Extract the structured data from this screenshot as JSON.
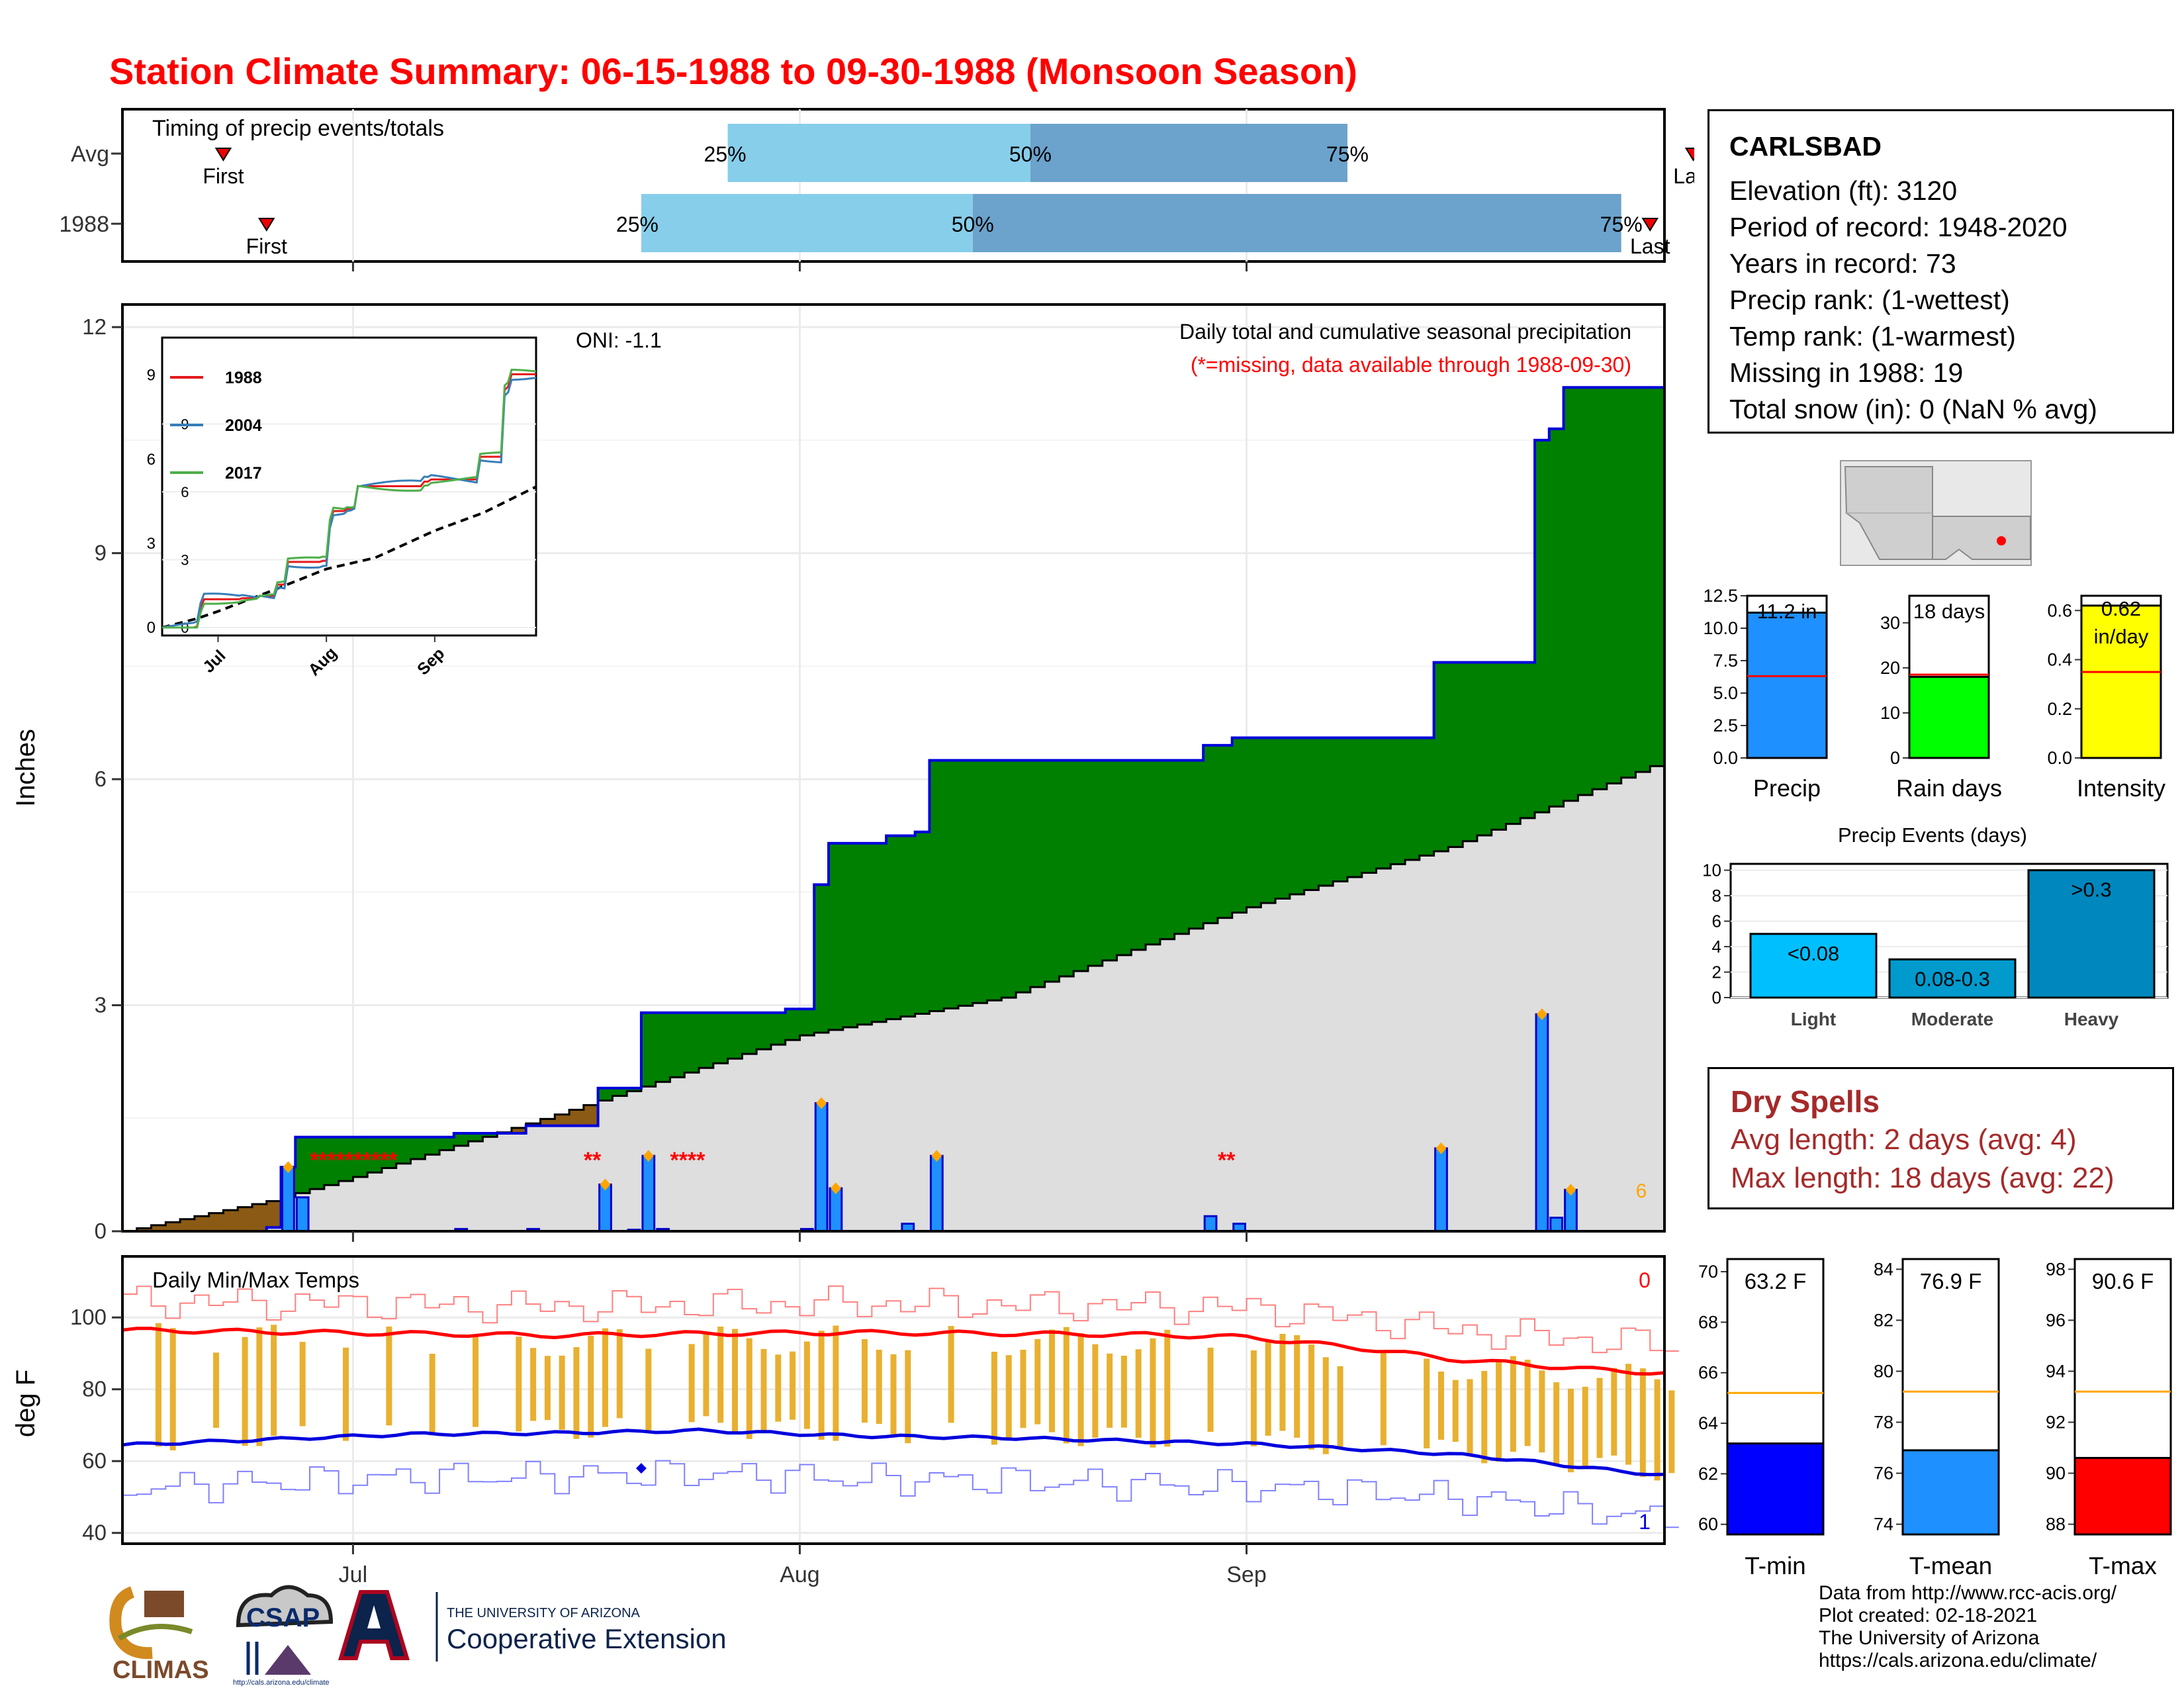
{
  "title": "Station Climate Summary: 06-15-1988 to 09-30-1988 (Monsoon Season)",
  "timing": {
    "panel_label": "Timing of precip events/totals",
    "rows": [
      {
        "label": "Avg",
        "first": "First",
        "last": "Last",
        "p25": "25%",
        "p50": "50%",
        "p75": "75%",
        "first_day": 7,
        "q25": 42,
        "q50": 63,
        "q75": 85,
        "last_day": 109
      },
      {
        "label": "1988",
        "first": "First",
        "last": "Last",
        "p25": "25%",
        "p50": "50%",
        "p75": "75%",
        "first_day": 10,
        "q25": 36,
        "q50": 59,
        "q75": 104,
        "last_day": 106
      }
    ]
  },
  "main_panel": {
    "ylabel": "Inches",
    "caption": "Daily total and cumulative seasonal precipitation",
    "missing_note": "(*=missing, data available through 1988-09-30)",
    "oni": "ONI: -1.1",
    "corner_count": "6",
    "missing_marks": [
      "**********",
      "**",
      "****",
      "**"
    ]
  },
  "inset": {
    "legend": [
      "1988",
      "2004",
      "2017"
    ],
    "yticks": [
      "0",
      "3",
      "6",
      "9"
    ],
    "xticks": [
      "Jul",
      "Aug",
      "Sep"
    ]
  },
  "temp_panel": {
    "ylabel": "deg F",
    "label": "Daily Min/Max Temps",
    "count_high": "0",
    "count_low": "1",
    "yticks": [
      "40",
      "60",
      "80",
      "100"
    ]
  },
  "x_axis": {
    "ticks": [
      "Jul",
      "Aug",
      "Sep"
    ]
  },
  "station": {
    "name": "CARLSBAD",
    "lines": [
      "Elevation (ft): 3120",
      "Period of record: 1948-2020",
      "Years in record: 73",
      "Precip rank:  (1-wettest)",
      "Temp rank:  (1-warmest)",
      "Missing in 1988: 19",
      "Total snow (in): 0 (NaN % avg)"
    ]
  },
  "mini_bars": [
    {
      "label": "Precip",
      "value_text": "11.2 in",
      "value": 11.2,
      "avg": 6.3,
      "ymax": 12.5,
      "ticks": [
        "0.0",
        "2.5",
        "5.0",
        "7.5",
        "10.0",
        "12.5"
      ],
      "color": "#1e90ff"
    },
    {
      "label": "Rain days",
      "value_text": "18 days",
      "value": 18,
      "avg": 18.5,
      "ymax": 36,
      "ticks": [
        "0",
        "10",
        "20",
        "30"
      ],
      "color": "#00ff00"
    },
    {
      "label": "Intensity",
      "value_text": "0.62 in/day",
      "value": 0.62,
      "avg": 0.35,
      "ymax": 0.66,
      "ticks": [
        "0.0",
        "0.2",
        "0.4",
        "0.6"
      ],
      "color": "#ffff00"
    }
  ],
  "precip_events": {
    "title": "Precip Events (days)",
    "categories": [
      "Light",
      "Moderate",
      "Heavy"
    ],
    "bar_labels": [
      "<0.08",
      "0.08-0.3",
      ">0.3"
    ],
    "values": [
      5,
      3,
      10
    ],
    "yticks": [
      "0",
      "2",
      "4",
      "6",
      "8",
      "10"
    ],
    "colors": [
      "#00bfff",
      "#009acd",
      "#0087bd"
    ]
  },
  "dry_spells": {
    "title": "Dry Spells",
    "avg_length": "Avg length: 2 days (avg: 4)",
    "max_length": "Max length: 18 days (avg: 22)"
  },
  "temp_bars": [
    {
      "label": "T-min",
      "value_text": "63.2 F",
      "value": 63.2,
      "avg": 65.2,
      "ymin": 59.6,
      "ymax": 70.5,
      "ticks": [
        "60",
        "62",
        "64",
        "66",
        "68",
        "70"
      ],
      "color": "#0000ff"
    },
    {
      "label": "T-mean",
      "value_text": "76.9 F",
      "value": 76.9,
      "avg": 79.2,
      "ymin": 73.6,
      "ymax": 84.4,
      "ticks": [
        "74",
        "76",
        "78",
        "80",
        "82",
        "84"
      ],
      "color": "#1e90ff"
    },
    {
      "label": "T-max",
      "value_text": "90.6 F",
      "value": 90.6,
      "avg": 93.2,
      "ymin": 87.6,
      "ymax": 98.4,
      "ticks": [
        "88",
        "90",
        "92",
        "94",
        "96",
        "98"
      ],
      "color": "#ff0000"
    }
  ],
  "logos": {
    "climas": "CLIMAS",
    "csap": "CSAP",
    "csap_url": "http://cals.arizona.edu/climate",
    "ua_small": "THE UNIVERSITY OF ARIZONA",
    "ua_big": "Cooperative Extension"
  },
  "credits": [
    "Data from http://www.rcc-acis.org/",
    "Plot created: 02-18-2021",
    "The University of Arizona",
    "https://cals.arizona.edu/climate/"
  ],
  "chart_data": [
    {
      "type": "area",
      "title": "Daily total and cumulative seasonal precipitation",
      "ylabel": "Inches",
      "ylim": [
        0,
        12.3
      ],
      "xlim": [
        "1988-06-15",
        "1988-09-30"
      ],
      "cumulative_1988": [
        [
          "06-15",
          0
        ],
        [
          "06-25",
          0.05
        ],
        [
          "06-26",
          0.85
        ],
        [
          "06-27",
          1.25
        ],
        [
          "07-07",
          1.25
        ],
        [
          "07-08",
          1.3
        ],
        [
          "07-12",
          1.3
        ],
        [
          "07-13",
          1.4
        ],
        [
          "07-17",
          1.4
        ],
        [
          "07-18",
          1.9
        ],
        [
          "07-20",
          1.9
        ],
        [
          "07-21",
          2.9
        ],
        [
          "07-31",
          2.95
        ],
        [
          "08-01",
          2.95
        ],
        [
          "08-02",
          4.6
        ],
        [
          "08-03",
          5.15
        ],
        [
          "08-07",
          5.25
        ],
        [
          "08-09",
          5.3
        ],
        [
          "08-10",
          6.25
        ],
        [
          "08-29",
          6.45
        ],
        [
          "08-31",
          6.55
        ],
        [
          "09-13",
          6.55
        ],
        [
          "09-14",
          7.55
        ],
        [
          "09-20",
          7.55
        ],
        [
          "09-21",
          10.5
        ],
        [
          "09-22",
          10.65
        ],
        [
          "09-23",
          11.2
        ],
        [
          "09-30",
          11.2
        ]
      ],
      "cumulative_avg": [
        [
          "06-15",
          0
        ],
        [
          "06-25",
          0.4
        ],
        [
          "07-01",
          0.72
        ],
        [
          "07-15",
          1.55
        ],
        [
          "08-01",
          2.6
        ],
        [
          "08-15",
          3.1
        ],
        [
          "09-01",
          4.3
        ],
        [
          "09-15",
          5.1
        ],
        [
          "09-30",
          6.25
        ]
      ],
      "daily_1988": [
        [
          "06-26",
          0.85
        ],
        [
          "06-27",
          0.45
        ],
        [
          "07-08",
          0.03
        ],
        [
          "07-13",
          0.03
        ],
        [
          "07-18",
          0.62
        ],
        [
          "07-20",
          0.02
        ],
        [
          "07-21",
          1.0
        ],
        [
          "07-22",
          0.03
        ],
        [
          "08-01",
          0.03
        ],
        [
          "08-02",
          1.7
        ],
        [
          "08-03",
          0.57
        ],
        [
          "08-08",
          0.1
        ],
        [
          "08-10",
          1.0
        ],
        [
          "08-29",
          0.2
        ],
        [
          "08-31",
          0.1
        ],
        [
          "09-14",
          1.1
        ],
        [
          "09-21",
          2.88
        ],
        [
          "09-22",
          0.18
        ],
        [
          "09-23",
          0.55
        ]
      ]
    },
    {
      "type": "line",
      "title": "Daily Min/Max Temps",
      "ylabel": "deg F",
      "ylim": [
        37,
        117
      ],
      "series": [
        {
          "name": "",
          "values": [
            96.5,
            96,
            95.5,
            95,
            95.5,
            95.8,
            95.5,
            95.2,
            94.5,
            93,
            91,
            88.5,
            87,
            85.5,
            84.5
          ],
          "x": [
            "06-15",
            "06-25",
            "07-05",
            "07-15",
            "07-25",
            "08-05",
            "08-15",
            "08-25",
            "09-01",
            "09-05",
            "09-10",
            "09-15",
            "09-20",
            "09-25",
            "09-30"
          ]
        },
        {
          "name": "",
          "values": [
            64.5,
            66,
            67.5,
            67.8,
            68.5,
            67,
            66.5,
            65.5,
            64.8,
            63.5,
            62,
            60.2,
            58,
            56
          ],
          "x": [
            "06-15",
            "06-25",
            "07-05",
            "07-15",
            "07-25",
            "08-05",
            "08-15",
            "08-25",
            "09-01",
            "09-08",
            "09-15",
            "09-20",
            "09-25",
            "09-30"
          ]
        }
      ]
    }
  ]
}
